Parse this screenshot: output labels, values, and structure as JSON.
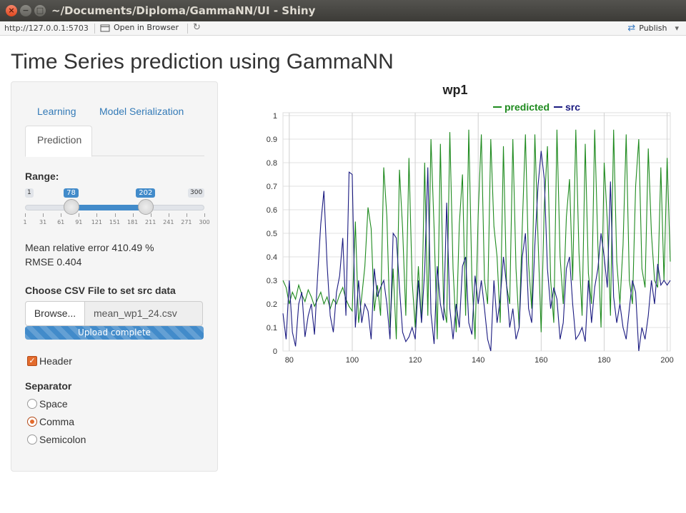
{
  "window": {
    "title": "~/Documents/Diploma/GammaNN/UI - Shiny",
    "close_glyph": "×",
    "min_glyph": "−",
    "max_glyph": "□"
  },
  "toolbar": {
    "url": "http://127.0.0.1:5703",
    "open_in_browser": "Open in Browser",
    "publish": "Publish",
    "publish_caret": "▾"
  },
  "page": {
    "title": "Time Series prediction using GammaNN"
  },
  "sidebar": {
    "tabs": [
      {
        "label": "Learning"
      },
      {
        "label": "Model Serialization"
      },
      {
        "label": "Prediction",
        "active": true
      }
    ],
    "range": {
      "label": "Range:",
      "min": 1,
      "max": 300,
      "from": 78,
      "to": 202,
      "min_label": "1",
      "max_label": "300",
      "from_label": "78",
      "to_label": "202",
      "grid": [
        "1",
        "31",
        "61",
        "91",
        "121",
        "151",
        "181",
        "211",
        "241",
        "271",
        "300"
      ]
    },
    "metrics": {
      "mre": "Mean relative error 410.49 %",
      "rmse": "RMSE 0.404"
    },
    "file": {
      "label": "Choose CSV File to set src data",
      "browse": "Browse...",
      "filename": "mean_wp1_24.csv",
      "progress": "Upload complete",
      "progress_fraction": 1.0
    },
    "header": {
      "label": "Header",
      "checked": true
    },
    "separator": {
      "label": "Separator",
      "options": [
        {
          "label": "Space",
          "checked": false
        },
        {
          "label": "Comma",
          "checked": true
        },
        {
          "label": "Semicolon",
          "checked": false
        }
      ]
    }
  },
  "colors": {
    "predicted": "#1e8a1e",
    "src": "#1a1a80",
    "accent": "#428bca",
    "check": "#e36b2c"
  },
  "chart_data": {
    "type": "line",
    "title": "wp1",
    "xlim": [
      78,
      201
    ],
    "ylim": [
      0,
      1
    ],
    "x_ticks": [
      80,
      100,
      120,
      140,
      160,
      180,
      200
    ],
    "y_ticks": [
      0,
      0.1,
      0.2,
      0.3,
      0.4,
      0.5,
      0.6,
      0.7,
      0.8,
      0.9,
      1
    ],
    "grid": true,
    "legend_placement": "top-center",
    "x": [
      78,
      79,
      80,
      81,
      82,
      83,
      84,
      85,
      86,
      87,
      88,
      89,
      90,
      91,
      92,
      93,
      94,
      95,
      96,
      97,
      98,
      99,
      100,
      101,
      102,
      103,
      104,
      105,
      106,
      107,
      108,
      109,
      110,
      111,
      112,
      113,
      114,
      115,
      116,
      117,
      118,
      119,
      120,
      121,
      122,
      123,
      124,
      125,
      126,
      127,
      128,
      129,
      130,
      131,
      132,
      133,
      134,
      135,
      136,
      137,
      138,
      139,
      140,
      141,
      142,
      143,
      144,
      145,
      146,
      147,
      148,
      149,
      150,
      151,
      152,
      153,
      154,
      155,
      156,
      157,
      158,
      159,
      160,
      161,
      162,
      163,
      164,
      165,
      166,
      167,
      168,
      169,
      170,
      171,
      172,
      173,
      174,
      175,
      176,
      177,
      178,
      179,
      180,
      181,
      182,
      183,
      184,
      185,
      186,
      187,
      188,
      189,
      190,
      191,
      192,
      193,
      194,
      195,
      196,
      197,
      198,
      199,
      200,
      201
    ],
    "series": [
      {
        "name": "predicted",
        "values": [
          0.3,
          0.27,
          0.2,
          0.25,
          0.22,
          0.28,
          0.24,
          0.21,
          0.26,
          0.23,
          0.19,
          0.22,
          0.25,
          0.2,
          0.23,
          0.18,
          0.22,
          0.2,
          0.24,
          0.27,
          0.22,
          0.19,
          0.17,
          0.55,
          0.12,
          0.23,
          0.36,
          0.61,
          0.52,
          0.17,
          0.28,
          0.15,
          0.78,
          0.57,
          0.1,
          0.35,
          0.05,
          0.77,
          0.52,
          0.15,
          0.82,
          0.3,
          0.1,
          0.36,
          0.12,
          0.8,
          0.15,
          0.9,
          0.52,
          0.05,
          0.88,
          0.2,
          0.12,
          0.93,
          0.35,
          0.08,
          0.54,
          0.75,
          0.15,
          0.94,
          0.3,
          0.05,
          0.58,
          0.92,
          0.3,
          0.2,
          0.9,
          0.53,
          0.4,
          0.12,
          0.87,
          0.28,
          0.2,
          0.9,
          0.35,
          0.1,
          0.53,
          0.92,
          0.37,
          0.18,
          0.92,
          0.48,
          0.08,
          0.62,
          0.87,
          0.3,
          0.12,
          0.94,
          0.4,
          0.2,
          0.57,
          0.73,
          0.3,
          0.94,
          0.42,
          0.15,
          0.88,
          0.33,
          0.2,
          0.94,
          0.45,
          0.1,
          0.8,
          0.55,
          0.15,
          0.94,
          0.38,
          0.2,
          0.45,
          0.92,
          0.3,
          0.2,
          0.7,
          0.9,
          0.35,
          0.27,
          0.86,
          0.5,
          0.3,
          0.27,
          0.78,
          0.3,
          0.82,
          0.38
        ]
      },
      {
        "name": "src",
        "values": [
          0.16,
          0.05,
          0.3,
          0.08,
          0.02,
          0.2,
          0.25,
          0.06,
          0.15,
          0.2,
          0.07,
          0.32,
          0.54,
          0.68,
          0.37,
          0.15,
          0.08,
          0.25,
          0.32,
          0.48,
          0.15,
          0.76,
          0.75,
          0.1,
          0.3,
          0.12,
          0.2,
          0.17,
          0.05,
          0.35,
          0.23,
          0.27,
          0.3,
          0.2,
          0.05,
          0.5,
          0.48,
          0.27,
          0.08,
          0.04,
          0.06,
          0.1,
          0.05,
          0.3,
          0.12,
          0.34,
          0.78,
          0.16,
          0.03,
          0.36,
          0.2,
          0.13,
          0.63,
          0.18,
          0.05,
          0.2,
          0.1,
          0.36,
          0.4,
          0.12,
          0.07,
          0.32,
          0.2,
          0.3,
          0.18,
          0.05,
          0.0,
          0.3,
          0.12,
          0.22,
          0.4,
          0.28,
          0.1,
          0.18,
          0.05,
          0.1,
          0.4,
          0.5,
          0.18,
          0.12,
          0.45,
          0.7,
          0.85,
          0.73,
          0.35,
          0.18,
          0.27,
          0.22,
          0.05,
          0.12,
          0.35,
          0.4,
          0.2,
          0.05,
          0.07,
          0.1,
          0.04,
          0.3,
          0.12,
          0.27,
          0.35,
          0.5,
          0.4,
          0.27,
          0.72,
          0.23,
          0.12,
          0.2,
          0.1,
          0.05,
          0.18,
          0.3,
          0.25,
          0.0,
          0.1,
          0.05,
          0.15,
          0.3,
          0.2,
          0.37,
          0.28,
          0.3,
          0.28,
          0.3
        ]
      }
    ]
  }
}
